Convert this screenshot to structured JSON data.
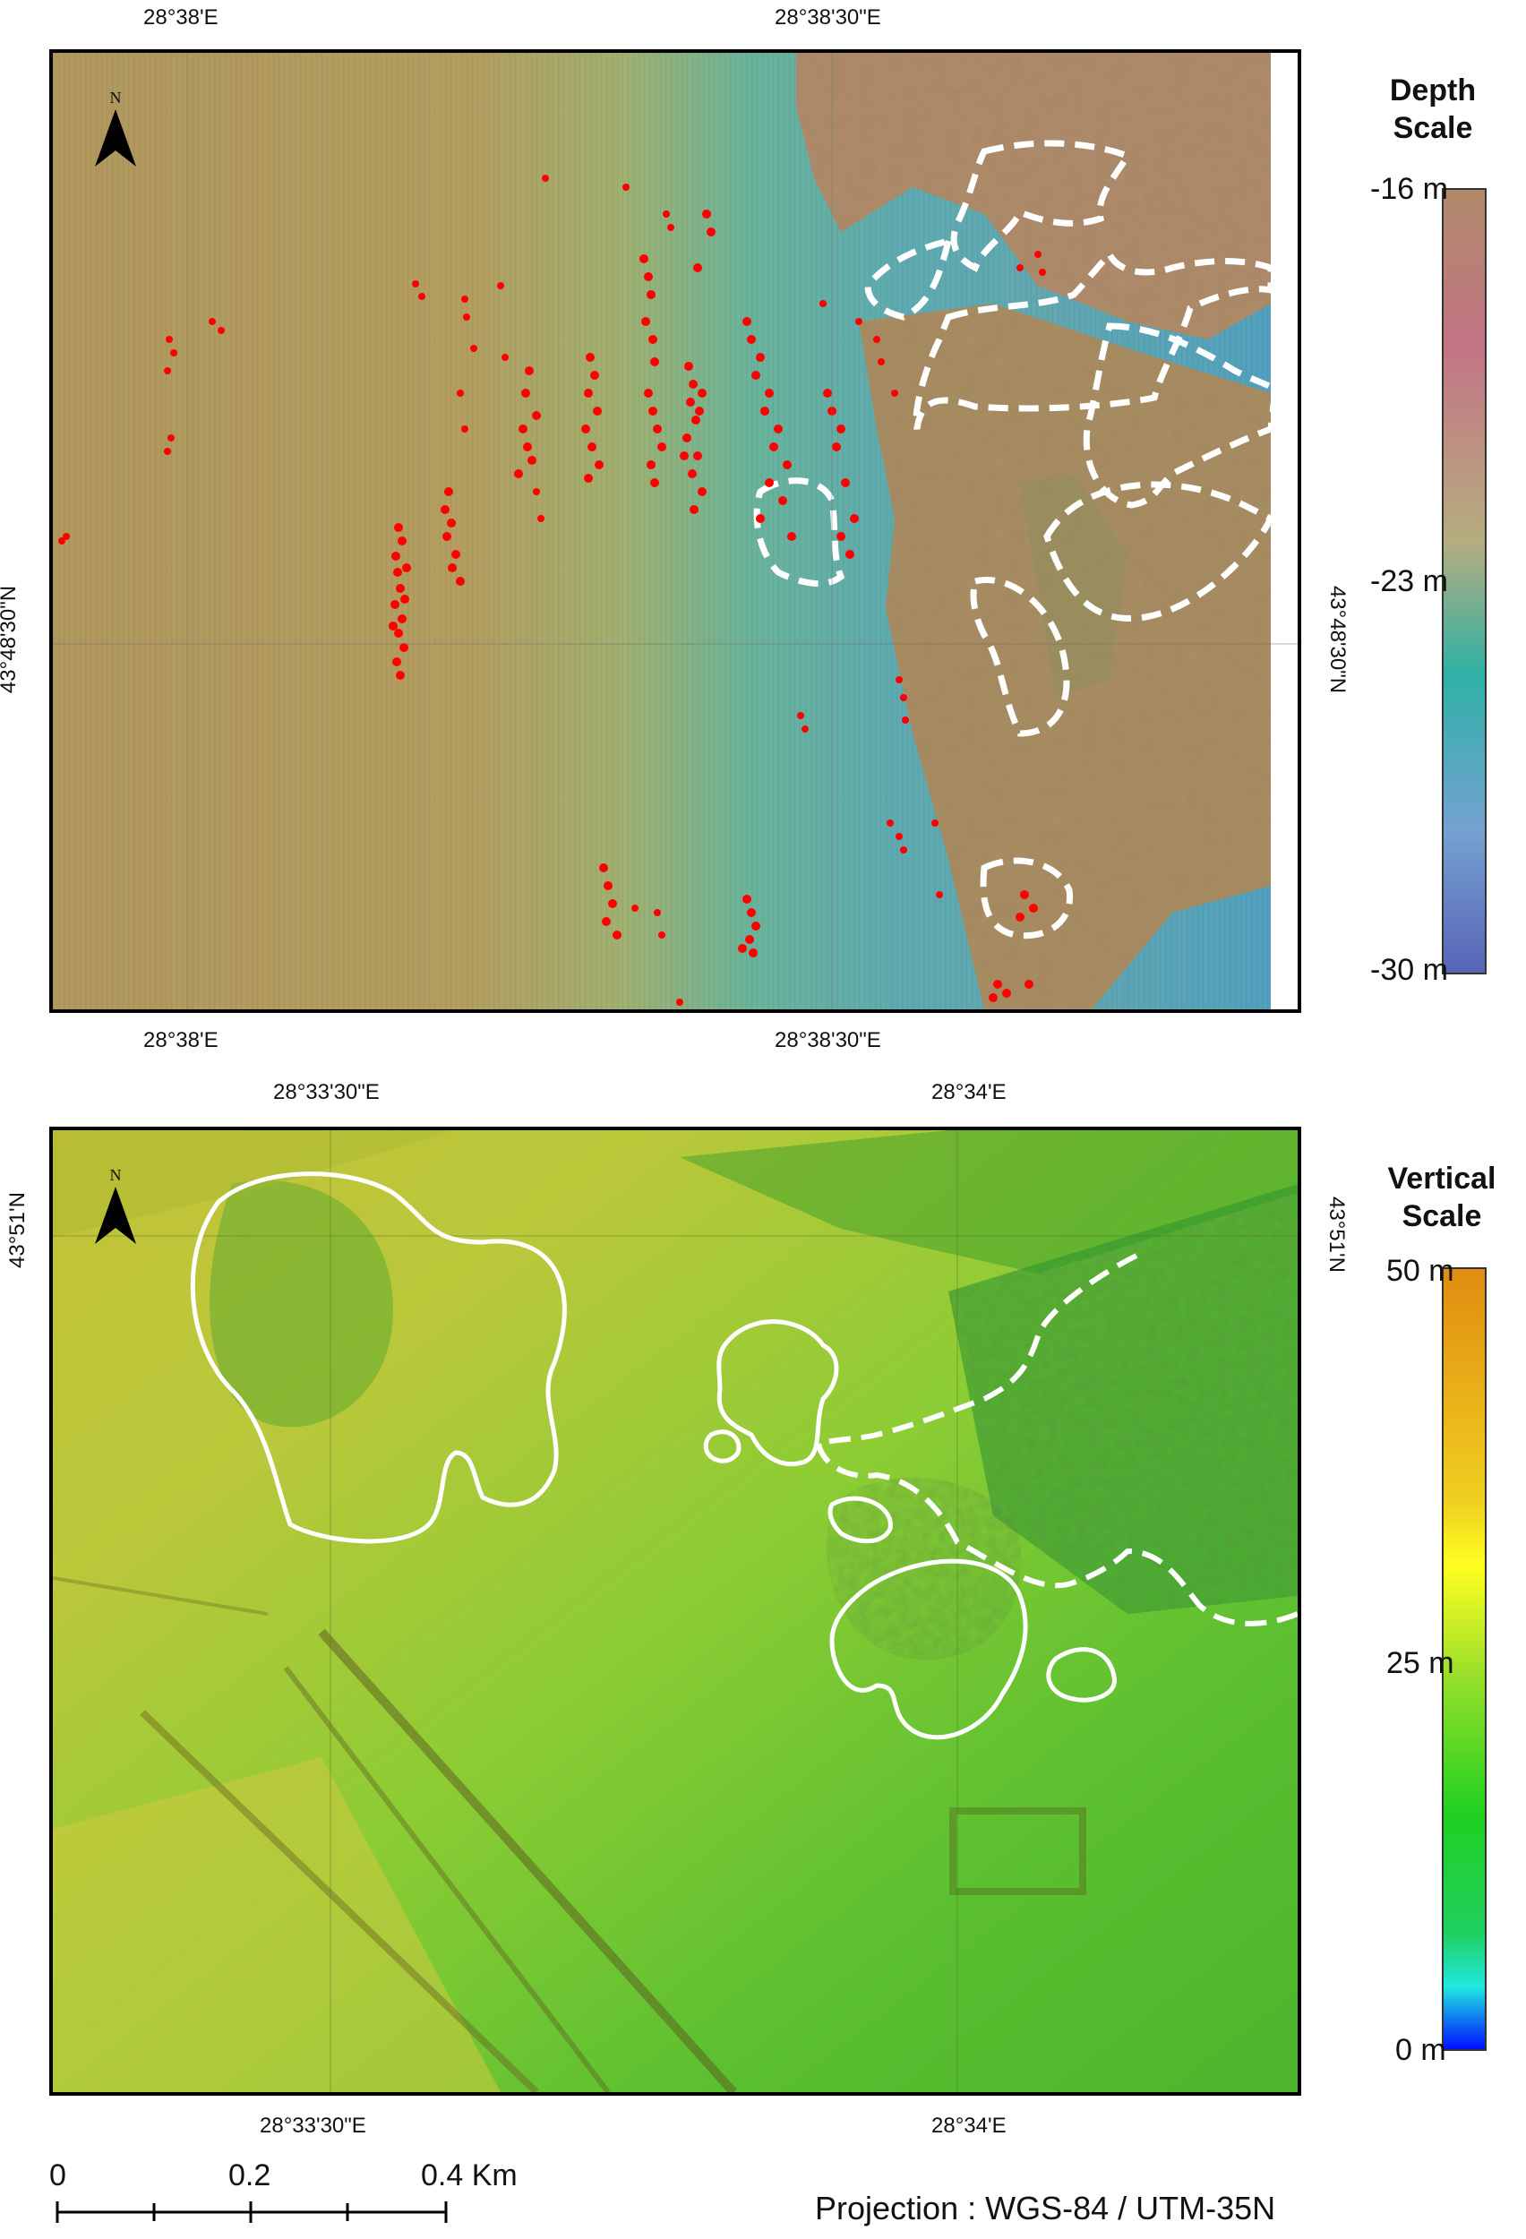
{
  "top_map": {
    "top_ticks": [
      "28°38'E",
      "28°38'30\"E"
    ],
    "bottom_ticks": [
      "28°38'E",
      "28°38'30\"E"
    ],
    "left_tick": "43°48'30\"N",
    "right_tick": "43°48'30\"N",
    "north_label": "N",
    "scale_title": "Depth Scale",
    "scale_values": [
      "-16 m",
      "-23 m",
      "-30 m"
    ],
    "colors": [
      "#b08a6a",
      "#c46a8a",
      "#b5b27a",
      "#2fb3a8",
      "#7a9ad6",
      "#5560b8"
    ],
    "marker_color": "#ff0000"
  },
  "bottom_map": {
    "top_ticks": [
      "28°33'30\"E",
      "28°34'E"
    ],
    "bottom_ticks": [
      "28°33'30\"E",
      "28°34'E"
    ],
    "left_tick": "43°51'N",
    "right_tick": "43°51'N",
    "north_label": "N",
    "scale_title": "Vertical Scale",
    "scale_values": [
      "50 m",
      "25 m",
      "0 m"
    ],
    "colors": [
      "#e08c10",
      "#ffff20",
      "#20d020",
      "#20e8d0",
      "#0010ff"
    ]
  },
  "scalebar": {
    "labels": [
      "0",
      "0.2",
      "0.4 Km"
    ]
  },
  "projection": "Projection : WGS-84 / UTM-35N"
}
